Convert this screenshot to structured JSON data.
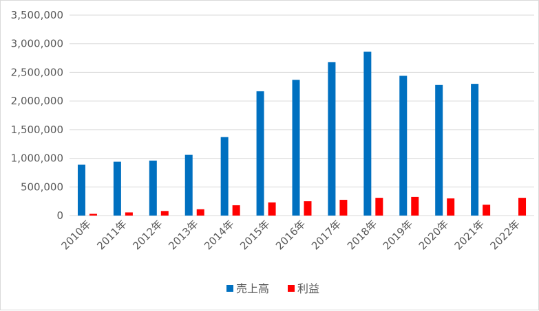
{
  "chart_data": {
    "type": "bar",
    "categories": [
      "2010年",
      "2011年",
      "2012年",
      "2013年",
      "2014年",
      "2015年",
      "2016年",
      "2017年",
      "2018年",
      "2019年",
      "2020年",
      "2021年",
      "2022年"
    ],
    "series": [
      {
        "name": "売上高",
        "color": "#0070C0",
        "values": [
          890000,
          940000,
          960000,
          1060000,
          1370000,
          2170000,
          2370000,
          2680000,
          2860000,
          2440000,
          2280000,
          2300000,
          null
        ]
      },
      {
        "name": "利益",
        "color": "#FF0000",
        "values": [
          30000,
          55000,
          80000,
          110000,
          180000,
          230000,
          250000,
          275000,
          310000,
          325000,
          300000,
          190000,
          310000
        ]
      }
    ],
    "y_ticks": [
      "0",
      "500,000",
      "1,000,000",
      "1,500,000",
      "2,000,000",
      "2,500,000",
      "3,000,000",
      "3,500,000"
    ],
    "ylim": [
      0,
      3500000
    ],
    "grid": true,
    "legend_position": "bottom"
  }
}
